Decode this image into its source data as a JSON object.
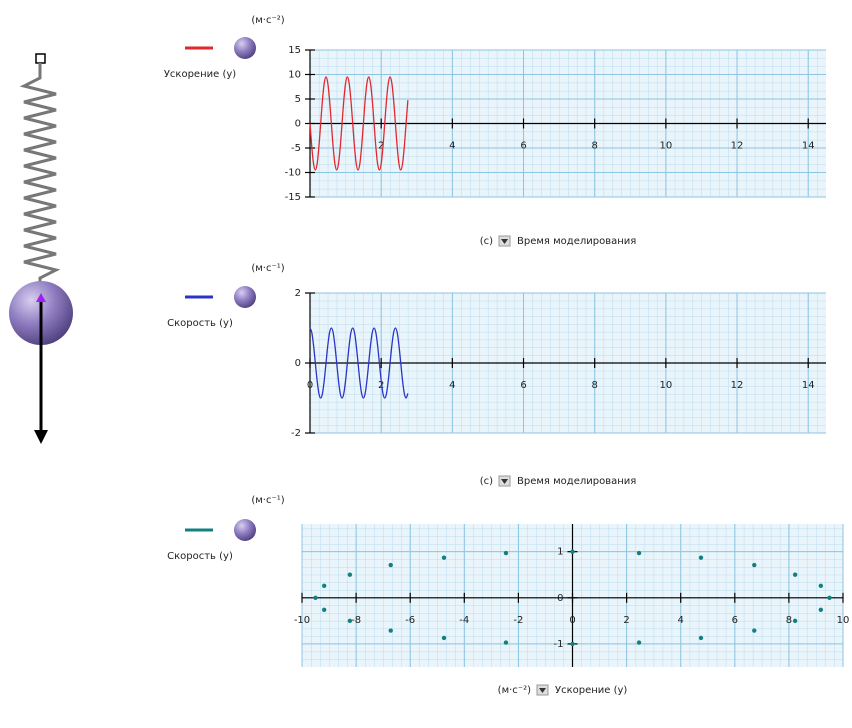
{
  "chart_data": [
    {
      "type": "line",
      "y_unit": "(м·с⁻²)",
      "x_unit": "(с)",
      "x_label": "Время моделирования",
      "x": [
        0,
        0.05,
        0.1,
        0.15,
        0.2,
        0.25,
        0.3,
        0.35,
        0.4,
        0.45,
        0.5,
        0.55,
        0.6,
        0.65,
        0.7,
        0.75,
        0.8,
        0.85,
        0.9,
        0.95,
        1,
        1.05,
        1.1,
        1.15,
        1.2,
        1.25,
        1.3,
        1.35,
        1.4,
        1.45,
        1.5,
        1.55,
        1.6,
        1.65,
        1.7,
        1.75,
        1.8,
        1.85,
        1.9,
        1.95,
        2,
        2.05,
        2.1,
        2.15,
        2.2,
        2.25,
        2.3,
        2.35,
        2.4,
        2.45,
        2.5,
        2.55,
        2.6,
        2.65,
        2.7,
        2.75
      ],
      "series": [
        {
          "name": "Ускорение (y)",
          "color": "#e0282e",
          "values": [
            0,
            -4.75,
            -8.23,
            -9.5,
            -8.23,
            -4.75,
            0,
            4.75,
            8.23,
            9.5,
            8.23,
            4.75,
            0,
            -4.75,
            -8.23,
            -9.5,
            -8.23,
            -4.75,
            0,
            4.75,
            8.23,
            9.5,
            8.23,
            4.75,
            0,
            -4.75,
            -8.23,
            -9.5,
            -8.23,
            -4.75,
            0,
            4.75,
            8.23,
            9.5,
            8.23,
            4.75,
            0,
            -4.75,
            -8.23,
            -9.5,
            -8.23,
            -4.75,
            0,
            4.75,
            8.23,
            9.5,
            8.23,
            4.75,
            0,
            -4.75,
            -8.23,
            -9.5,
            -8.23,
            -4.75,
            0,
            4.75
          ]
        }
      ],
      "xlim": [
        0,
        14.5
      ],
      "ylim": [
        -15,
        15
      ],
      "xticks": [
        2,
        4,
        6,
        8,
        10,
        12,
        14
      ],
      "yticks": [
        15,
        10,
        5,
        0,
        -5,
        -10,
        -15
      ],
      "grid": true
    },
    {
      "type": "line",
      "y_unit": "(м·с⁻¹)",
      "x_unit": "(с)",
      "x_label": "Время моделирования",
      "x": [
        0,
        0.05,
        0.1,
        0.15,
        0.2,
        0.25,
        0.3,
        0.35,
        0.4,
        0.45,
        0.5,
        0.55,
        0.6,
        0.65,
        0.7,
        0.75,
        0.8,
        0.85,
        0.9,
        0.95,
        1,
        1.05,
        1.1,
        1.15,
        1.2,
        1.25,
        1.3,
        1.35,
        1.4,
        1.45,
        1.5,
        1.55,
        1.6,
        1.65,
        1.7,
        1.75,
        1.8,
        1.85,
        1.9,
        1.95,
        2,
        2.05,
        2.1,
        2.15,
        2.2,
        2.25,
        2.3,
        2.35,
        2.4,
        2.45,
        2.5,
        2.55,
        2.6,
        2.65,
        2.7,
        2.75
      ],
      "series": [
        {
          "name": "Скорость (y)",
          "color": "#2a35c8",
          "values": [
            1,
            0.87,
            0.5,
            0,
            -0.5,
            -0.87,
            -1,
            -0.87,
            -0.5,
            0,
            0.5,
            0.87,
            1,
            0.87,
            0.5,
            0,
            -0.5,
            -0.87,
            -1,
            -0.87,
            -0.5,
            0,
            0.5,
            0.87,
            1,
            0.87,
            0.5,
            0,
            -0.5,
            -0.87,
            -1,
            -0.87,
            -0.5,
            0,
            0.5,
            0.87,
            1,
            0.87,
            0.5,
            0,
            -0.5,
            -0.87,
            -1,
            -0.87,
            -0.5,
            0,
            0.5,
            0.87,
            1,
            0.87,
            0.5,
            0,
            -0.5,
            -0.87,
            -1,
            -0.87
          ]
        }
      ],
      "xlim": [
        0,
        14.5
      ],
      "ylim": [
        -2,
        2
      ],
      "xticks": [
        0,
        2,
        4,
        6,
        8,
        10,
        12,
        14
      ],
      "yticks": [
        2,
        0,
        -2
      ],
      "grid": true
    },
    {
      "type": "scatter",
      "y_unit": "(м·с⁻¹)",
      "x_unit": "(м·с⁻²)",
      "x_label": "Ускорение (y)",
      "x": [
        0,
        -2.46,
        -4.75,
        -6.72,
        -8.23,
        -9.18,
        -9.5,
        -9.18,
        -8.23,
        -6.72,
        -4.75,
        -2.46,
        0,
        2.46,
        4.75,
        6.72,
        8.23,
        9.18,
        9.5,
        9.18,
        8.23,
        6.72,
        4.75,
        2.46
      ],
      "series": [
        {
          "name": "Скорость (y)",
          "color": "#138080",
          "values": [
            1,
            0.97,
            0.87,
            0.71,
            0.5,
            0.26,
            0,
            -0.26,
            -0.5,
            -0.71,
            -0.87,
            -0.97,
            -1,
            -0.97,
            -0.87,
            -0.71,
            -0.5,
            -0.26,
            0,
            0.26,
            0.5,
            0.71,
            0.87,
            0.97
          ]
        }
      ],
      "xlim": [
        -10,
        10
      ],
      "ylim": [
        -1.5,
        1.6
      ],
      "xticks": [
        -10,
        -8,
        -6,
        -4,
        -2,
        0,
        2,
        4,
        6,
        8,
        10
      ],
      "yticks": [
        1,
        0,
        -1
      ],
      "grid": true
    }
  ]
}
